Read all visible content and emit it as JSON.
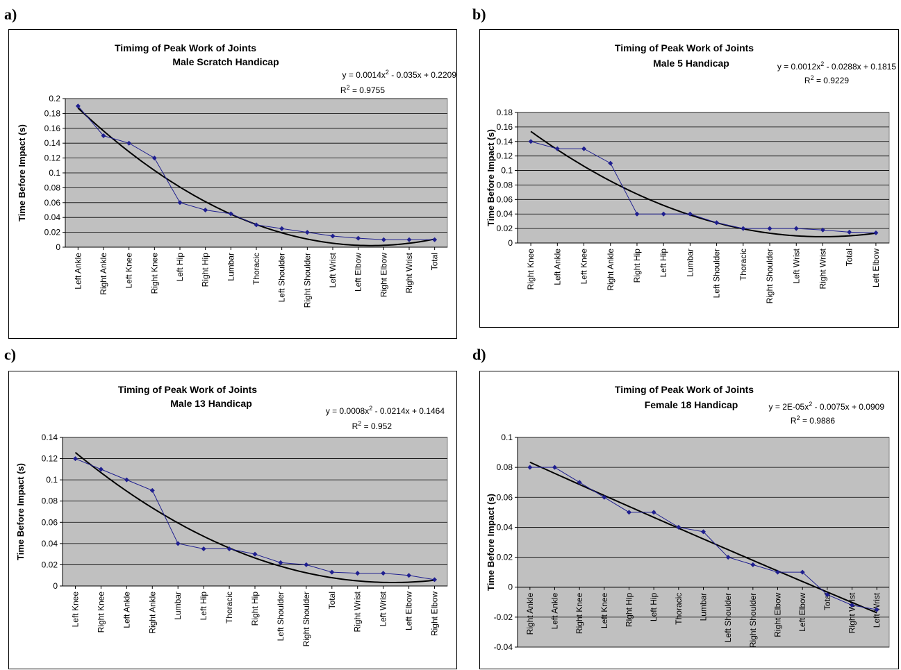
{
  "panels": [
    {
      "letter": "a)"
    },
    {
      "letter": "b)"
    },
    {
      "letter": "c)"
    },
    {
      "letter": "d)"
    }
  ],
  "colors": {
    "plot_bg": "#c0c0c0",
    "series": "#1f1f8f",
    "trend": "#000000",
    "grid": "#000000"
  },
  "chart_data": [
    {
      "type": "line",
      "title": "Timimg of Peak Work of Joints",
      "subtitle": "Male Scratch Handicap",
      "ylabel": "Time Before Impact (s)",
      "xlabel": "",
      "ylim": [
        0,
        0.2
      ],
      "yticks": [
        "0",
        "0.02",
        "0.04",
        "0.06",
        "0.08",
        "0.1",
        "0.12",
        "0.14",
        "0.16",
        "0.18",
        "0.2"
      ],
      "grid": true,
      "categories": [
        "Left Ankle",
        "Right Ankle",
        "Left Knee",
        "Right Knee",
        "Left Hip",
        "Right Hip",
        "Lumbar",
        "Thoracic",
        "Left Shoulder",
        "Right Shoulder",
        "Left Wrist",
        "Left Elbow",
        "Right Elbow",
        "Right Wrist",
        "Total"
      ],
      "values": [
        0.19,
        0.15,
        0.14,
        0.12,
        0.06,
        0.05,
        0.045,
        0.03,
        0.025,
        0.02,
        0.015,
        0.012,
        0.01,
        0.01,
        0.01
      ],
      "trendline": {
        "type": "polynomial",
        "coeffs": [
          0.0014,
          -0.035,
          0.2209
        ]
      },
      "equation_prefix": "y = 0.0014x",
      "equation_sup": "2",
      "equation_suffix": " - 0.035x + 0.2209",
      "r2_prefix": "R",
      "r2_sup": "2",
      "r2_suffix": " = 0.9755"
    },
    {
      "type": "line",
      "title": "Timing of Peak Work of Joints",
      "subtitle": "Male 5 Handicap",
      "ylabel": "Time Before Impact (s)",
      "xlabel": "",
      "ylim": [
        0,
        0.18
      ],
      "yticks": [
        "0",
        "0.02",
        "0.04",
        "0.06",
        "0.08",
        "0.1",
        "0.12",
        "0.14",
        "0.16",
        "0.18"
      ],
      "grid": true,
      "categories": [
        "Right Knee",
        "Left Ankle",
        "Left Knee",
        "Right Ankle",
        "Right Hip",
        "Left Hip",
        "Lumbar",
        "Left Shoulder",
        "Thoracic",
        "Right Shoulder",
        "Left Wrist",
        "Right Wrist",
        "Total",
        "Left Elbow"
      ],
      "values": [
        0.14,
        0.13,
        0.13,
        0.11,
        0.04,
        0.04,
        0.04,
        0.028,
        0.02,
        0.02,
        0.02,
        0.018,
        0.015,
        0.014
      ],
      "trendline": {
        "type": "polynomial",
        "coeffs": [
          0.0012,
          -0.0288,
          0.1815
        ]
      },
      "equation_prefix": "y = 0.0012x",
      "equation_sup": "2",
      "equation_suffix": " - 0.0288x + 0.1815",
      "r2_prefix": "R",
      "r2_sup": "2",
      "r2_suffix": " = 0.9229"
    },
    {
      "type": "line",
      "title": "Timing of Peak Work of Joints",
      "subtitle": "Male 13 Handicap",
      "ylabel": "Time Before Impact (s)",
      "xlabel": "",
      "ylim": [
        0,
        0.14
      ],
      "yticks": [
        "0",
        "0.02",
        "0.04",
        "0.06",
        "0.08",
        "0.1",
        "0.12",
        "0.14"
      ],
      "grid": true,
      "categories": [
        "Left Knee",
        "Right Knee",
        "Left Ankle",
        "Right Ankle",
        "Lumbar",
        "Left Hip",
        "Thoracic",
        "Right Hip",
        "Left Shoulder",
        "Right Shoulder",
        "Total",
        "Right Wrist",
        "Left Wrist",
        "Left Elbow",
        "Right Elbow"
      ],
      "values": [
        0.12,
        0.11,
        0.1,
        0.09,
        0.04,
        0.035,
        0.035,
        0.03,
        0.022,
        0.02,
        0.013,
        0.012,
        0.012,
        0.01,
        0.006
      ],
      "trendline": {
        "type": "polynomial",
        "coeffs": [
          0.0008,
          -0.0214,
          0.1464
        ]
      },
      "equation_prefix": "y = 0.0008x",
      "equation_sup": "2",
      "equation_suffix": " - 0.0214x + 0.1464",
      "r2_prefix": "R",
      "r2_sup": "2",
      "r2_suffix": " = 0.952"
    },
    {
      "type": "line",
      "title": "Timing of Peak Work of Joints",
      "subtitle": "Female 18 Handicap",
      "ylabel": "Time Before Impact (s)",
      "xlabel": "",
      "ylim": [
        -0.04,
        0.1
      ],
      "yticks": [
        "-0.04",
        "-0.02",
        "0",
        "0.02",
        "0.04",
        "0.06",
        "0.08",
        "0.1"
      ],
      "grid": true,
      "categories": [
        "Right Ankle",
        "Left Ankle",
        "Right Knee",
        "Left Knee",
        "Right Hip",
        "Left Hip",
        "Thoracic",
        "Lumbar",
        "Left Shoulder",
        "Right Shoulder",
        "Right Elbow",
        "Left Elbow",
        "Total",
        "Right Wrist",
        "Left Wrist"
      ],
      "values": [
        0.08,
        0.08,
        0.07,
        0.06,
        0.05,
        0.05,
        0.04,
        0.037,
        0.02,
        0.015,
        0.01,
        0.01,
        -0.005,
        -0.012,
        -0.015
      ],
      "trendline": {
        "type": "polynomial",
        "coeffs": [
          2e-05,
          -0.0075,
          0.0909
        ]
      },
      "equation_prefix": "y = 2E-05x",
      "equation_sup": "2",
      "equation_suffix": " - 0.0075x + 0.0909",
      "r2_prefix": "R",
      "r2_sup": "2",
      "r2_suffix": " = 0.9886"
    }
  ]
}
